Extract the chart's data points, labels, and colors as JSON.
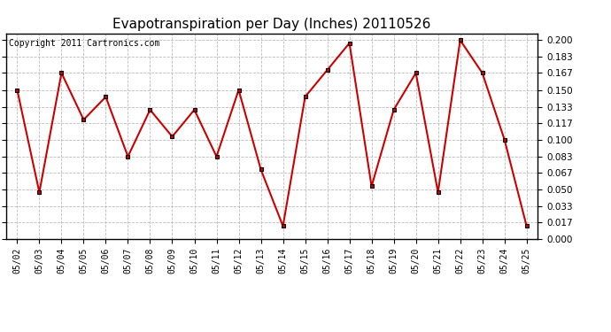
{
  "title": "Evapotranspiration per Day (Inches) 20110526",
  "copyright": "Copyright 2011 Cartronics.com",
  "dates": [
    "05/02",
    "05/03",
    "05/04",
    "05/05",
    "05/06",
    "05/07",
    "05/08",
    "05/09",
    "05/10",
    "05/11",
    "05/12",
    "05/13",
    "05/14",
    "05/15",
    "05/16",
    "05/17",
    "05/18",
    "05/19",
    "05/20",
    "05/21",
    "05/22",
    "05/23",
    "05/24",
    "05/25"
  ],
  "values": [
    0.15,
    0.047,
    0.167,
    0.12,
    0.143,
    0.083,
    0.13,
    0.103,
    0.13,
    0.083,
    0.15,
    0.07,
    0.013,
    0.143,
    0.17,
    0.197,
    0.053,
    0.13,
    0.167,
    0.047,
    0.2,
    0.167,
    0.1,
    0.013
  ],
  "line_color": "#cc0000",
  "marker": "s",
  "marker_color": "#000000",
  "marker_size": 3,
  "bg_color": "#ffffff",
  "plot_bg_color": "#ffffff",
  "grid_color": "#bbbbbb",
  "ylim": [
    0.0,
    0.207
  ],
  "yticks": [
    0.0,
    0.017,
    0.033,
    0.05,
    0.067,
    0.083,
    0.1,
    0.117,
    0.133,
    0.15,
    0.167,
    0.183,
    0.2
  ],
  "title_fontsize": 11,
  "copyright_fontsize": 7
}
